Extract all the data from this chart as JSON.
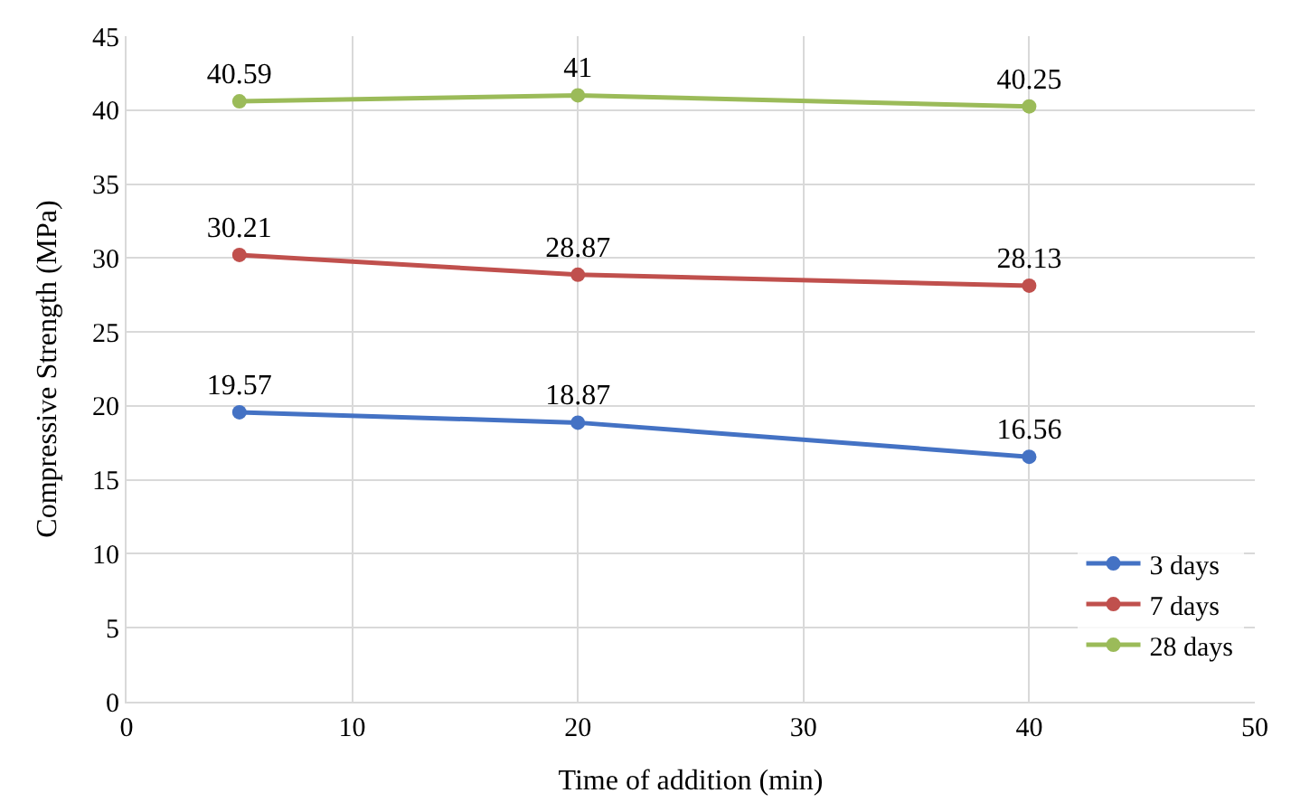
{
  "chart_data": {
    "type": "line",
    "xlabel": "Time of addition (min)",
    "ylabel": "Compressive Strength (MPa)",
    "x": [
      5,
      20,
      40
    ],
    "series": [
      {
        "name": "3 days",
        "color": "#4472c4",
        "values": [
          19.57,
          18.87,
          16.56
        ]
      },
      {
        "name": "7 days",
        "color": "#c0504d",
        "values": [
          30.21,
          28.87,
          28.13
        ]
      },
      {
        "name": "28 days",
        "color": "#9bbb59",
        "values": [
          40.59,
          41,
          40.25
        ]
      }
    ],
    "xlim": [
      0,
      50
    ],
    "xticks": [
      0,
      10,
      20,
      30,
      40,
      50
    ],
    "ylim": [
      0,
      45
    ],
    "yticks": [
      0,
      5,
      10,
      15,
      20,
      25,
      30,
      35,
      40,
      45
    ],
    "grid": true,
    "legend": "bottom right",
    "marker": "circle",
    "line_style": "solid",
    "data_labels": true
  }
}
